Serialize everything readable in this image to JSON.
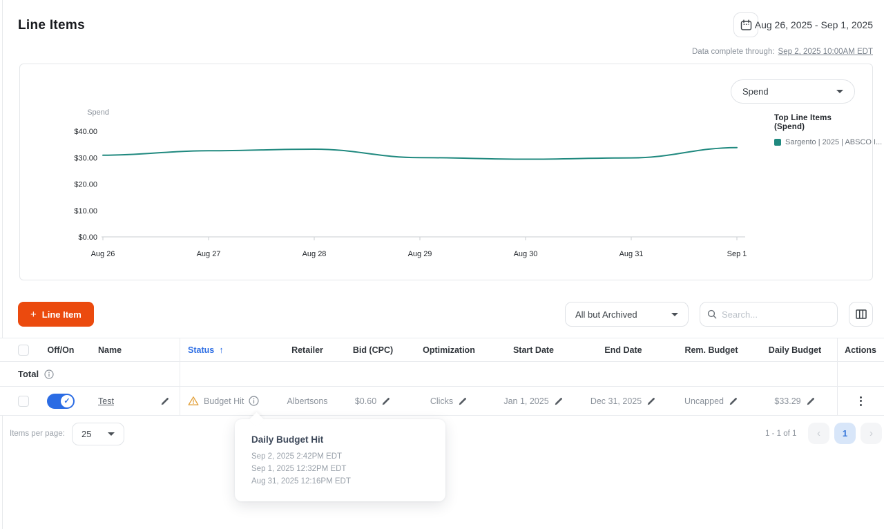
{
  "page": {
    "title": "Line Items",
    "date_range": "Aug 26, 2025 - Sep 1, 2025",
    "data_complete_label": "Data complete through:",
    "data_complete_value": "Sep 2, 2025 10:00AM EDT"
  },
  "chart": {
    "metric_dropdown_value": "Spend",
    "legend_title_line1": "Top Line Items",
    "legend_title_line2": "(Spend)",
    "legend_item": "Sargento | 2025 | ABSCO I..."
  },
  "chart_data": {
    "type": "line",
    "x": [
      "Aug 26",
      "Aug 27",
      "Aug 28",
      "Aug 29",
      "Aug 30",
      "Aug 31",
      "Sep 1"
    ],
    "series": [
      {
        "name": "Sargento | 2025 | ABSCO I...",
        "values": [
          30.9,
          32.6,
          33.2,
          30.0,
          29.4,
          29.9,
          33.8
        ],
        "color": "#20897f"
      }
    ],
    "title": "Top Line Items (Spend)",
    "xlabel": "",
    "ylabel": "Spend",
    "ylim": [
      0,
      40
    ],
    "yticks": [
      "$40.00",
      "$30.00",
      "$20.00",
      "$10.00",
      "$0.00"
    ],
    "grid": false,
    "legend_position": "right"
  },
  "toolbar": {
    "add_plus": "+",
    "add_label": "Line Item",
    "filter_value": "All but Archived",
    "search_placeholder": "Search..."
  },
  "table": {
    "columns": [
      "Off/On",
      "Name",
      "Status",
      "Retailer",
      "Bid (CPC)",
      "Optimization",
      "Start Date",
      "End Date",
      "Rem. Budget",
      "Daily Budget",
      "Actions"
    ],
    "sort_arrow": "↑",
    "total_label": "Total",
    "row": {
      "toggle_on": true,
      "name": "Test",
      "status": "Budget Hit",
      "retailer": "Albertsons",
      "bid": "$0.60",
      "optimization": "Clicks",
      "start_date": "Jan 1, 2025",
      "end_date": "Dec 31, 2025",
      "rem_budget": "Uncapped",
      "daily_budget": "$33.29"
    }
  },
  "tooltip": {
    "title": "Daily Budget Hit",
    "lines": [
      "Sep 2, 2025 2:42PM EDT",
      "Sep 1, 2025 12:32PM EDT",
      "Aug 31, 2025 12:16PM EDT"
    ]
  },
  "pagination": {
    "items_per_page_label": "Items per page:",
    "items_per_page_value": "25",
    "range": "1 - 1 of 1",
    "page": "1",
    "prev": "‹",
    "next": "›"
  },
  "colors": {
    "accent_orange": "#eb4a0e",
    "accent_blue": "#2f6fe4",
    "series_teal": "#20897f",
    "warning": "#e2a13c"
  }
}
